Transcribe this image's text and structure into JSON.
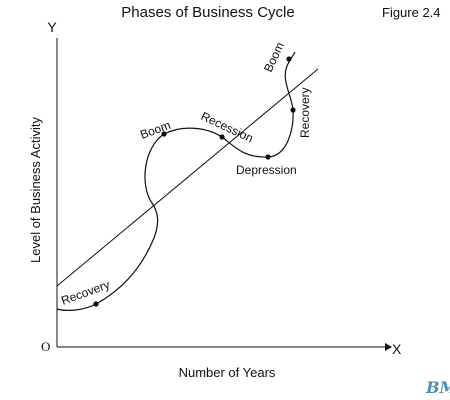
{
  "diagram": {
    "title": "Phases of Business Cycle",
    "figure_label": "Figure 2.4",
    "y_axis_letter": "Y",
    "x_axis_letter": "X",
    "origin_label": "O",
    "y_axis_label": "Level of Business Activity",
    "x_axis_label": "Number of Years",
    "phases": {
      "recovery_1": "Recovery",
      "boom_1": "Boom",
      "recession": "Recession",
      "depression": "Depression",
      "recovery_2": "Recovery",
      "boom_2": "Boom"
    },
    "watermark": "BMS",
    "colors": {
      "ink": "#111111",
      "watermark": "#4a8fb8"
    }
  }
}
